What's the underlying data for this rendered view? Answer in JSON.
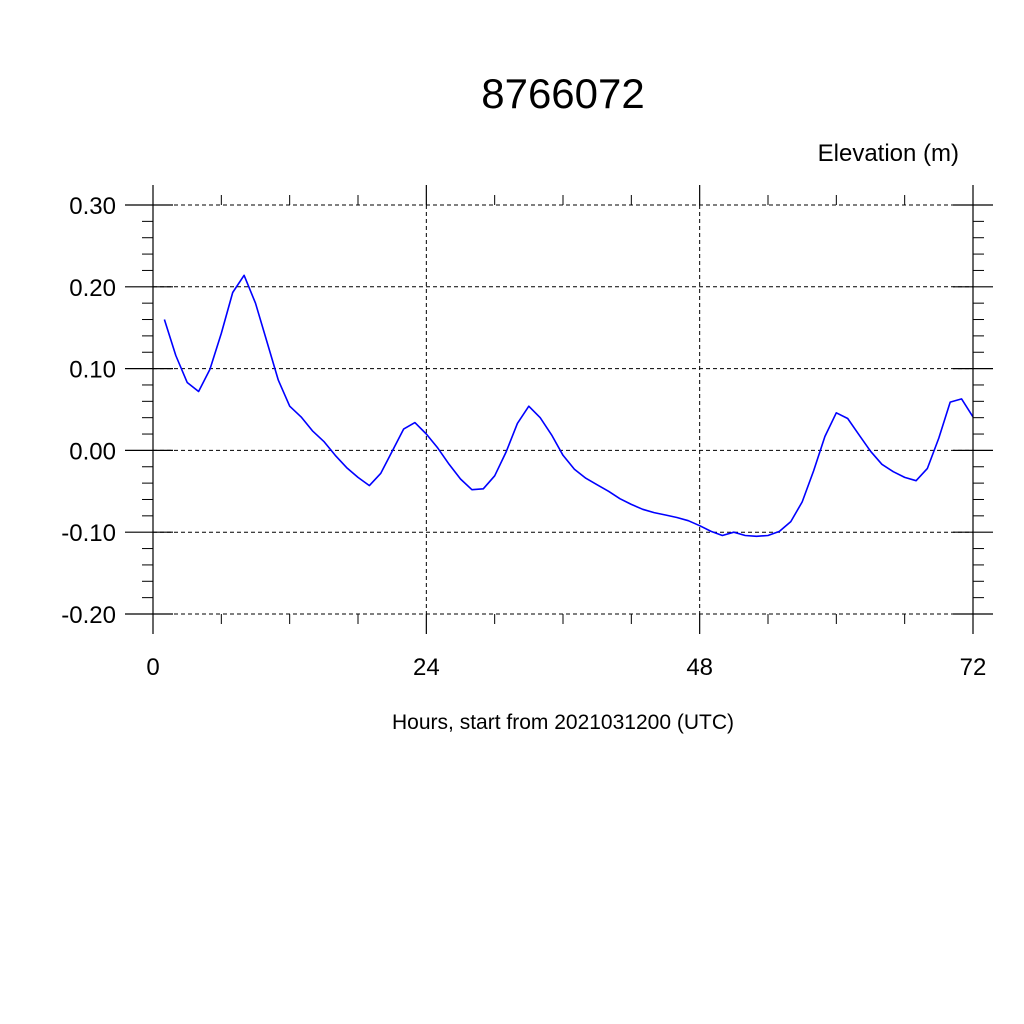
{
  "chart_data": {
    "type": "line",
    "title": "8766072",
    "ylabel": "Elevation (m)",
    "xlabel": "Hours, start from 2021031200 (UTC)",
    "xlim": [
      0,
      72
    ],
    "ylim": [
      -0.2,
      0.3
    ],
    "x_ticks": [
      0,
      24,
      48,
      72
    ],
    "x_tick_labels": [
      "0",
      "24",
      "48",
      "72"
    ],
    "y_ticks": [
      0.3,
      0.2,
      0.1,
      0.0,
      -0.1,
      -0.2
    ],
    "y_tick_labels": [
      "0.30",
      "0.20",
      "0.10",
      "0.00",
      "-0.10",
      "-0.20"
    ],
    "grid": true,
    "series": [
      {
        "color": "#0000ff",
        "x": [
          1,
          2,
          3,
          4,
          5,
          6,
          7,
          8,
          9,
          10,
          11,
          12,
          13,
          14,
          15,
          16,
          17,
          18,
          19,
          20,
          21,
          22,
          23,
          24,
          25,
          26,
          27,
          28,
          29,
          30,
          31,
          32,
          33,
          34,
          35,
          36,
          37,
          38,
          39,
          40,
          41,
          42,
          43,
          44,
          45,
          46,
          47,
          48,
          49,
          50,
          51,
          52,
          53,
          54,
          55,
          56,
          57,
          58,
          59,
          60,
          61,
          62,
          63,
          64,
          65,
          66,
          67,
          68,
          69,
          70,
          71,
          72
        ],
        "values": [
          0.16,
          0.116,
          0.083,
          0.072,
          0.099,
          0.143,
          0.193,
          0.214,
          0.18,
          0.133,
          0.086,
          0.054,
          0.041,
          0.024,
          0.011,
          -0.006,
          -0.021,
          -0.033,
          -0.043,
          -0.028,
          -0.001,
          0.026,
          0.034,
          0.02,
          0.003,
          -0.017,
          -0.035,
          -0.048,
          -0.047,
          -0.031,
          -0.002,
          0.033,
          0.054,
          0.04,
          0.019,
          -0.006,
          -0.023,
          -0.034,
          -0.042,
          -0.05,
          -0.059,
          -0.066,
          -0.072,
          -0.076,
          -0.079,
          -0.082,
          -0.086,
          -0.092,
          -0.099,
          -0.104,
          -0.1,
          -0.104,
          -0.105,
          -0.104,
          -0.099,
          -0.087,
          -0.063,
          -0.025,
          0.017,
          0.046,
          0.039,
          0.019,
          -0.001,
          -0.017,
          -0.026,
          -0.033,
          -0.037,
          -0.022,
          0.015,
          0.059,
          0.063,
          0.041
        ]
      }
    ]
  }
}
